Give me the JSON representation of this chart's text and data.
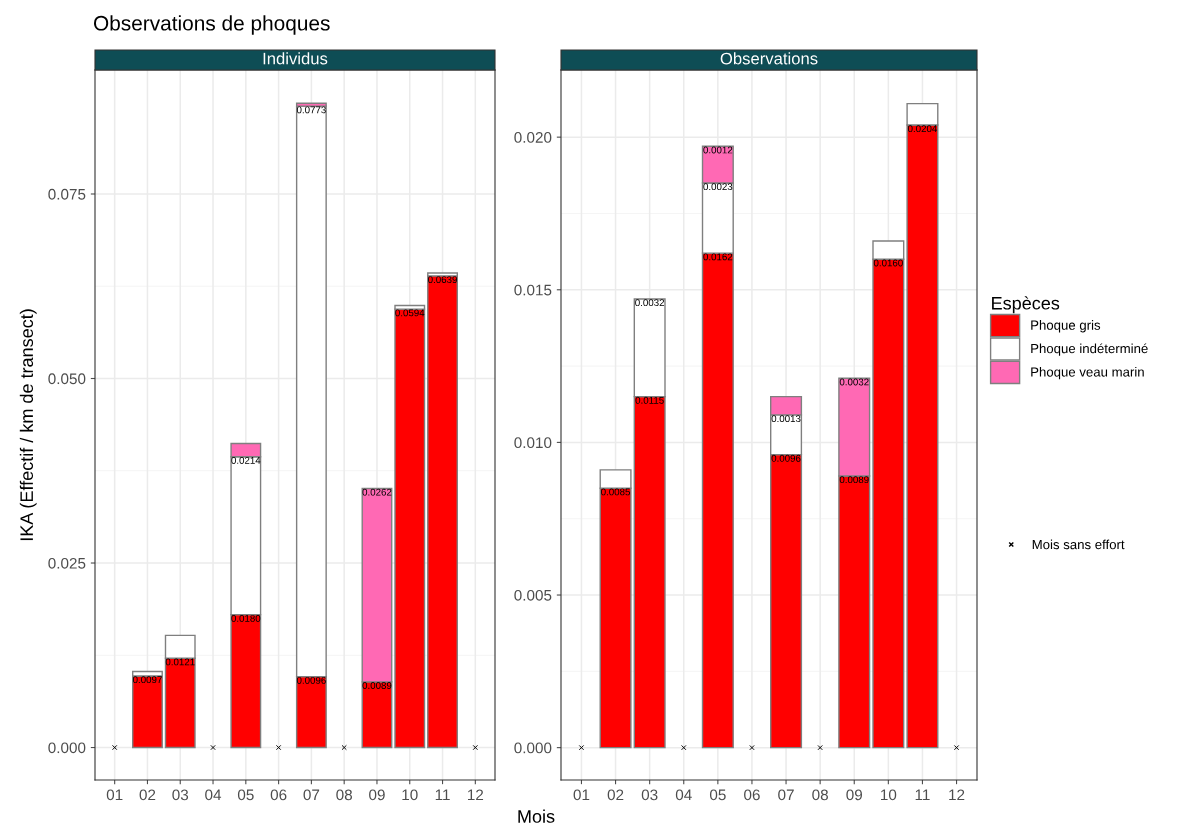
{
  "chart_data": [
    {
      "type": "bar",
      "title": "Individus",
      "xlabel": "Mois",
      "ylabel": "IKA (Effectif / km de transect)",
      "annotations": [
        "Observations de phoques"
      ],
      "stacked": true,
      "grid": true,
      "legend": false,
      "categories": [
        "01",
        "02",
        "03",
        "04",
        "05",
        "06",
        "07",
        "08",
        "09",
        "10",
        "11",
        "12"
      ],
      "ylim": [
        -0.0044,
        0.0918
      ],
      "yticks": [
        {
          "value": 0,
          "label": "0.000"
        },
        {
          "value": 0.025,
          "label": "0.025"
        },
        {
          "value": 0.05,
          "label": "0.050"
        },
        {
          "value": 0.075,
          "label": "0.075"
        }
      ],
      "series": [
        {
          "color": "#ff0000",
          "values": [
            null,
            0.0097,
            0.0121,
            null,
            0.018,
            null,
            0.0096,
            null,
            0.0089,
            0.0594,
            0.0639,
            null
          ],
          "value_labels": [
            null,
            "0.0097",
            "0.0121",
            null,
            "0.0180",
            null,
            "0.0096",
            null,
            "0.0089",
            "0.0594",
            "0.0639",
            null
          ]
        },
        {
          "color": "#ffffff",
          "values": [
            null,
            0.0006,
            0.0031,
            null,
            0.0214,
            null,
            0.0773,
            null,
            null,
            0.0005,
            0.0004,
            null
          ],
          "value_labels": [
            null,
            null,
            null,
            null,
            "0.0214",
            null,
            "0.0773",
            null,
            null,
            null,
            null,
            null
          ]
        },
        {
          "color": "#ff69b4",
          "values": [
            null,
            null,
            null,
            null,
            0.0018,
            null,
            0.0004,
            null,
            0.0262,
            null,
            null,
            null
          ],
          "value_labels": [
            null,
            null,
            null,
            null,
            null,
            null,
            null,
            null,
            "0.0262",
            null,
            null,
            null
          ]
        },
        {
          "type": "scatter",
          "marker": "cross",
          "color": "#000000",
          "values": [
            0,
            null,
            null,
            0,
            null,
            0,
            null,
            0,
            null,
            null,
            null,
            0
          ]
        }
      ]
    },
    {
      "type": "bar",
      "title": "Observations",
      "legend_title": "Espèces",
      "stacked": true,
      "grid": true,
      "legend": "right",
      "categories": [
        "01",
        "02",
        "03",
        "04",
        "05",
        "06",
        "07",
        "08",
        "09",
        "10",
        "11",
        "12"
      ],
      "ylim": [
        -0.00106,
        0.0222
      ],
      "yticks": [
        {
          "value": 0,
          "label": "0.000"
        },
        {
          "value": 0.005,
          "label": "0.005"
        },
        {
          "value": 0.01,
          "label": "0.010"
        },
        {
          "value": 0.015,
          "label": "0.015"
        },
        {
          "value": 0.02,
          "label": "0.020"
        }
      ],
      "series": [
        {
          "name": "Phoque gris",
          "color": "#ff0000",
          "values": [
            null,
            0.0085,
            0.0115,
            null,
            0.0162,
            null,
            0.0096,
            null,
            0.0089,
            0.016,
            0.0204,
            null
          ],
          "value_labels": [
            null,
            "0.0085",
            "0.0115",
            null,
            "0.0162",
            null,
            "0.0096",
            null,
            "0.0089",
            "0.0160",
            "0.0204",
            null
          ]
        },
        {
          "name": "Phoque indéterminé",
          "color": "#ffffff",
          "values": [
            null,
            0.0006,
            0.0032,
            null,
            0.0023,
            null,
            0.0013,
            null,
            null,
            0.0006,
            0.0007,
            null
          ],
          "value_labels": [
            null,
            null,
            "0.0032",
            null,
            "0.0023",
            null,
            "0.0013",
            null,
            null,
            null,
            null,
            null
          ]
        },
        {
          "name": "Phoque veau marin",
          "color": "#ff69b4",
          "values": [
            null,
            null,
            null,
            null,
            0.0012,
            null,
            0.0006,
            null,
            0.0032,
            null,
            null,
            null
          ],
          "value_labels": [
            null,
            null,
            null,
            null,
            "0.0012",
            null,
            null,
            null,
            "0.0032",
            null,
            null,
            null
          ]
        },
        {
          "name": "Mois sans effort",
          "type": "scatter",
          "marker": "cross",
          "color": "#000000",
          "values": [
            0,
            null,
            null,
            0,
            null,
            0,
            null,
            0,
            null,
            null,
            null,
            0
          ]
        }
      ]
    }
  ]
}
